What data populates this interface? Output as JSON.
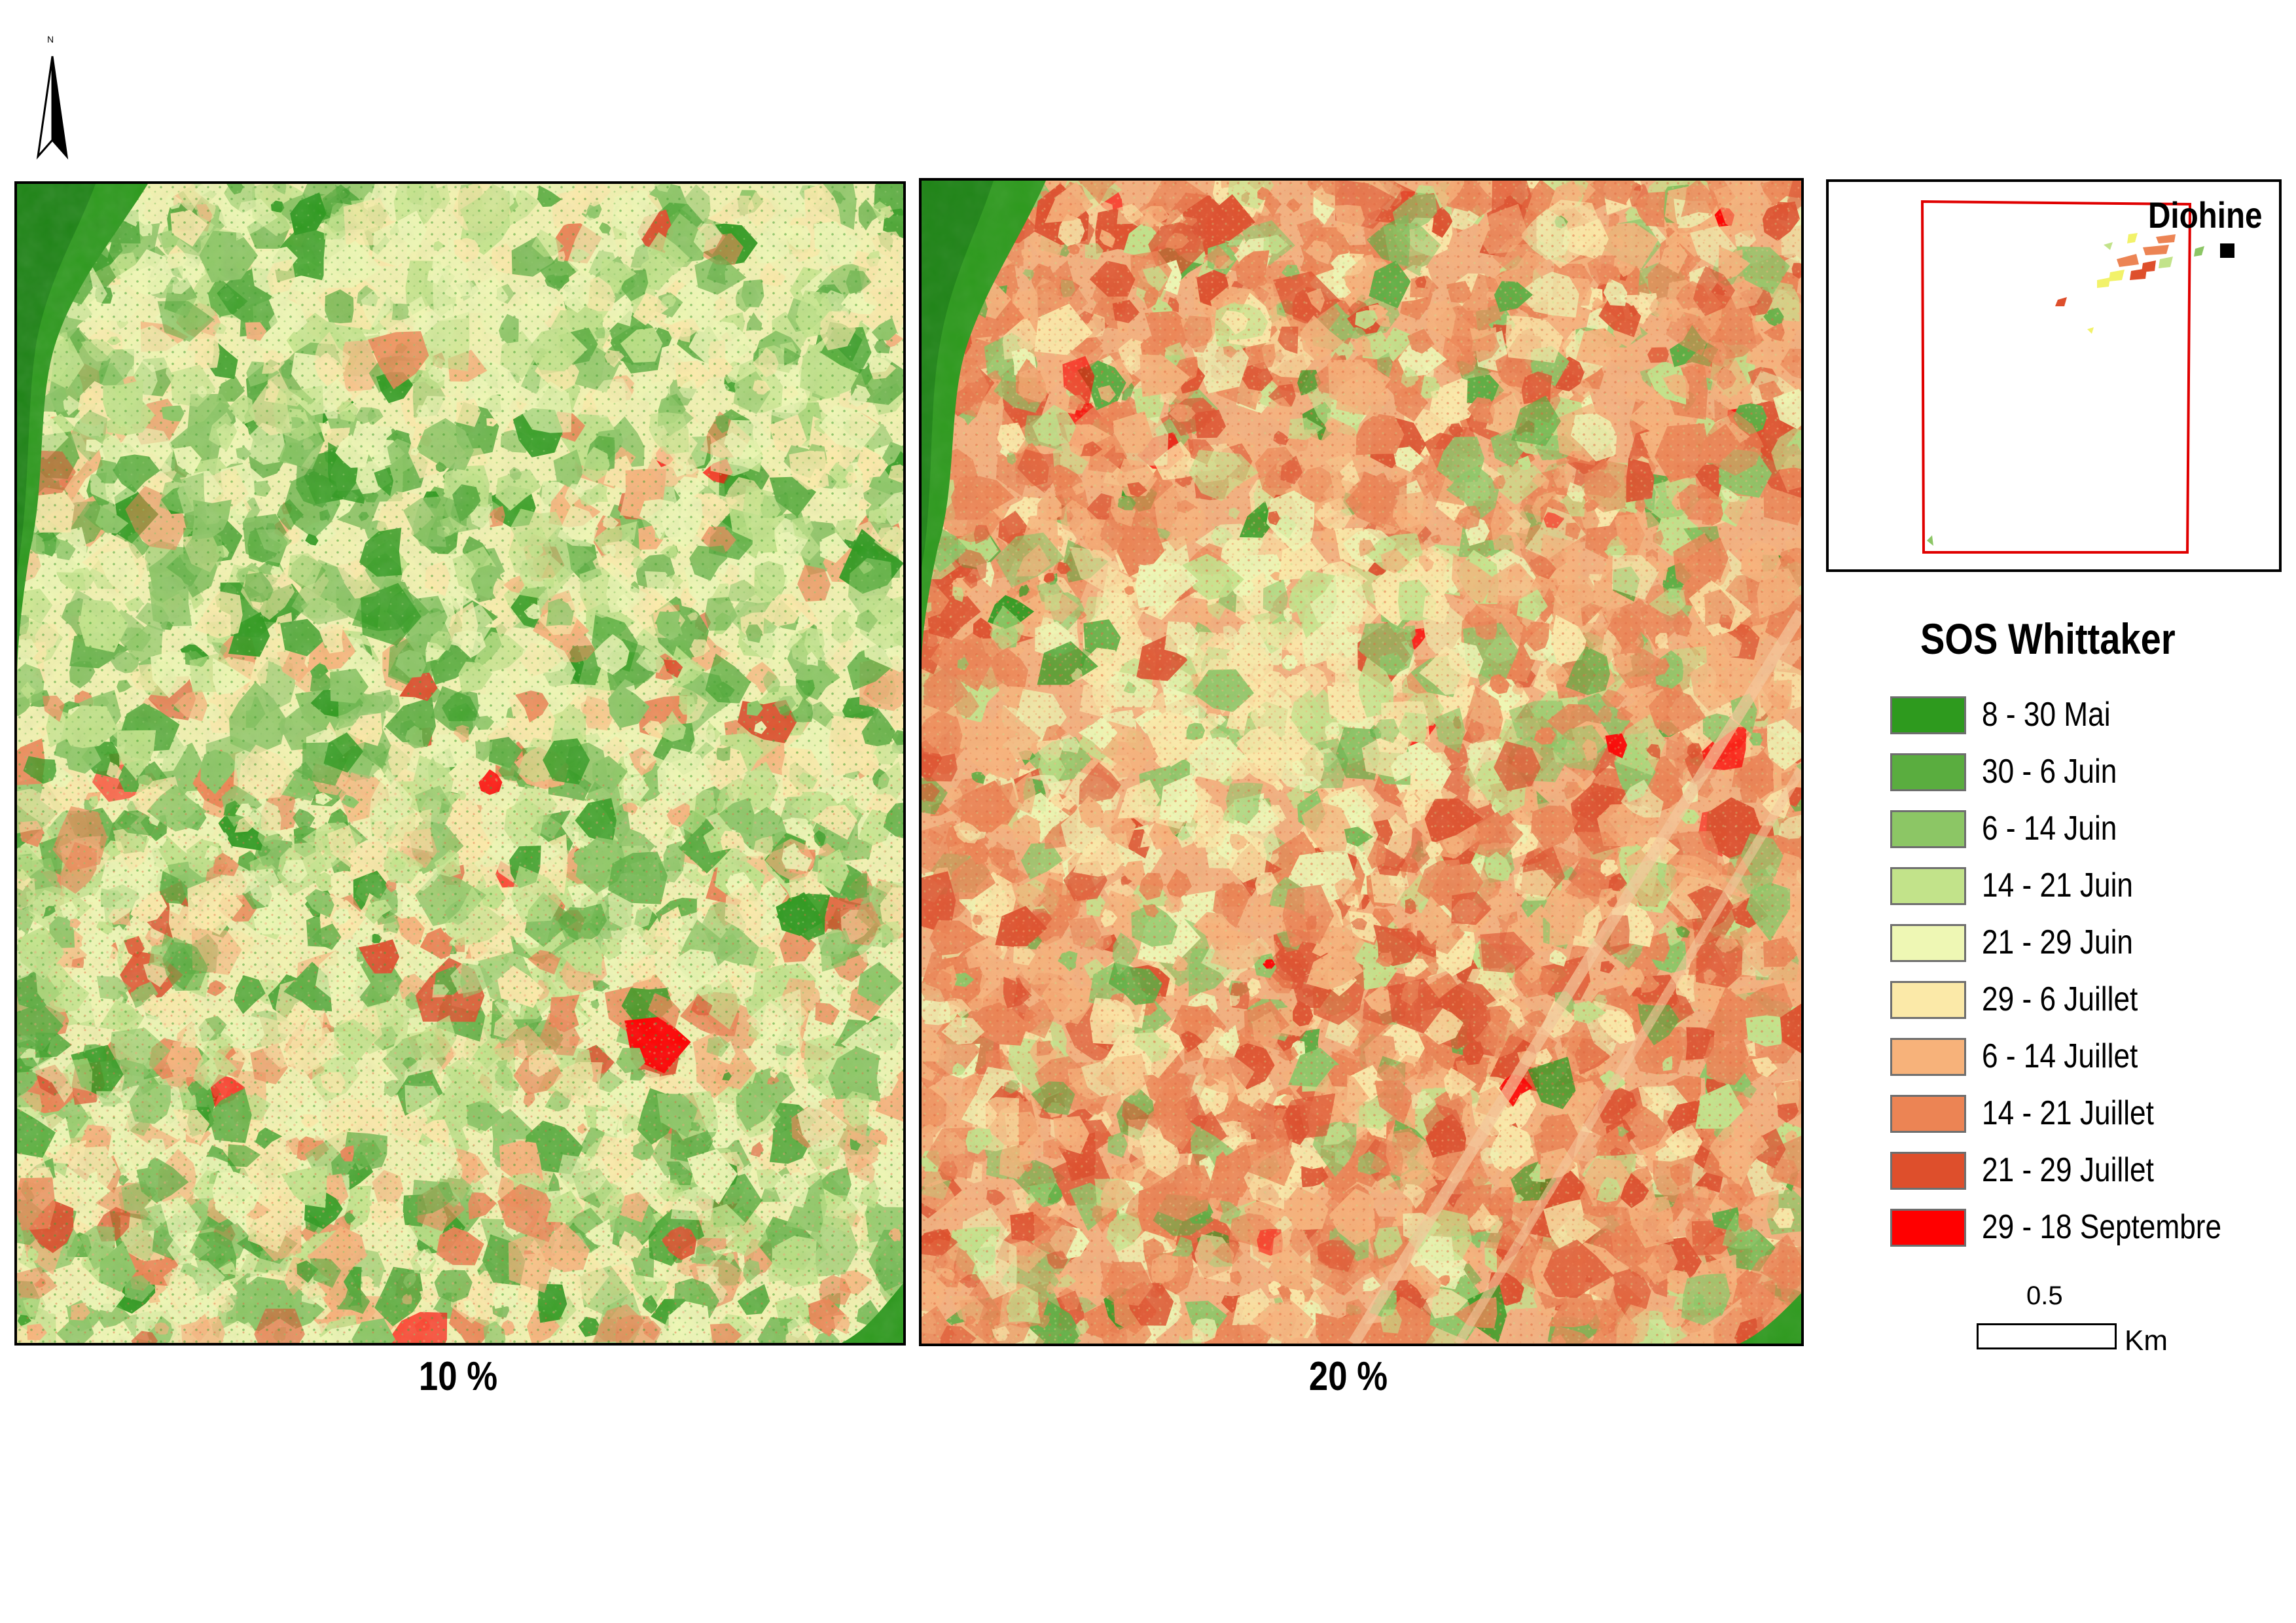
{
  "north_arrow": {
    "label": "N",
    "icon": "north-arrow-icon"
  },
  "panels": [
    {
      "caption": "10 %",
      "dominant": "green"
    },
    {
      "caption": "20 %",
      "dominant": "orange-red"
    }
  ],
  "inset": {
    "place_label": "Diohine",
    "boundary_color": "#e00000"
  },
  "legend": {
    "title": "SOS Whittaker",
    "classes": [
      {
        "label": "8 - 30 Mai",
        "color": "#2e9a1e"
      },
      {
        "label": "30 - 6 Juin",
        "color": "#5aad3f"
      },
      {
        "label": "6 - 14 Juin",
        "color": "#8cc665"
      },
      {
        "label": "14 - 21 Juin",
        "color": "#c2e38a"
      },
      {
        "label": "21 - 29 Juin",
        "color": "#eef7b4"
      },
      {
        "label": "29 - 6 Juillet",
        "color": "#fbe9a8"
      },
      {
        "label": "6 - 14 Juillet",
        "color": "#f7b27a"
      },
      {
        "label": "14 - 21 Juillet",
        "color": "#ec8454"
      },
      {
        "label": "21 - 29 Juillet",
        "color": "#de4f2c"
      },
      {
        "label": "29 - 18 Septembre",
        "color": "#ff0000"
      }
    ]
  },
  "scale_bar": {
    "value": "0.5",
    "unit": "Km"
  }
}
